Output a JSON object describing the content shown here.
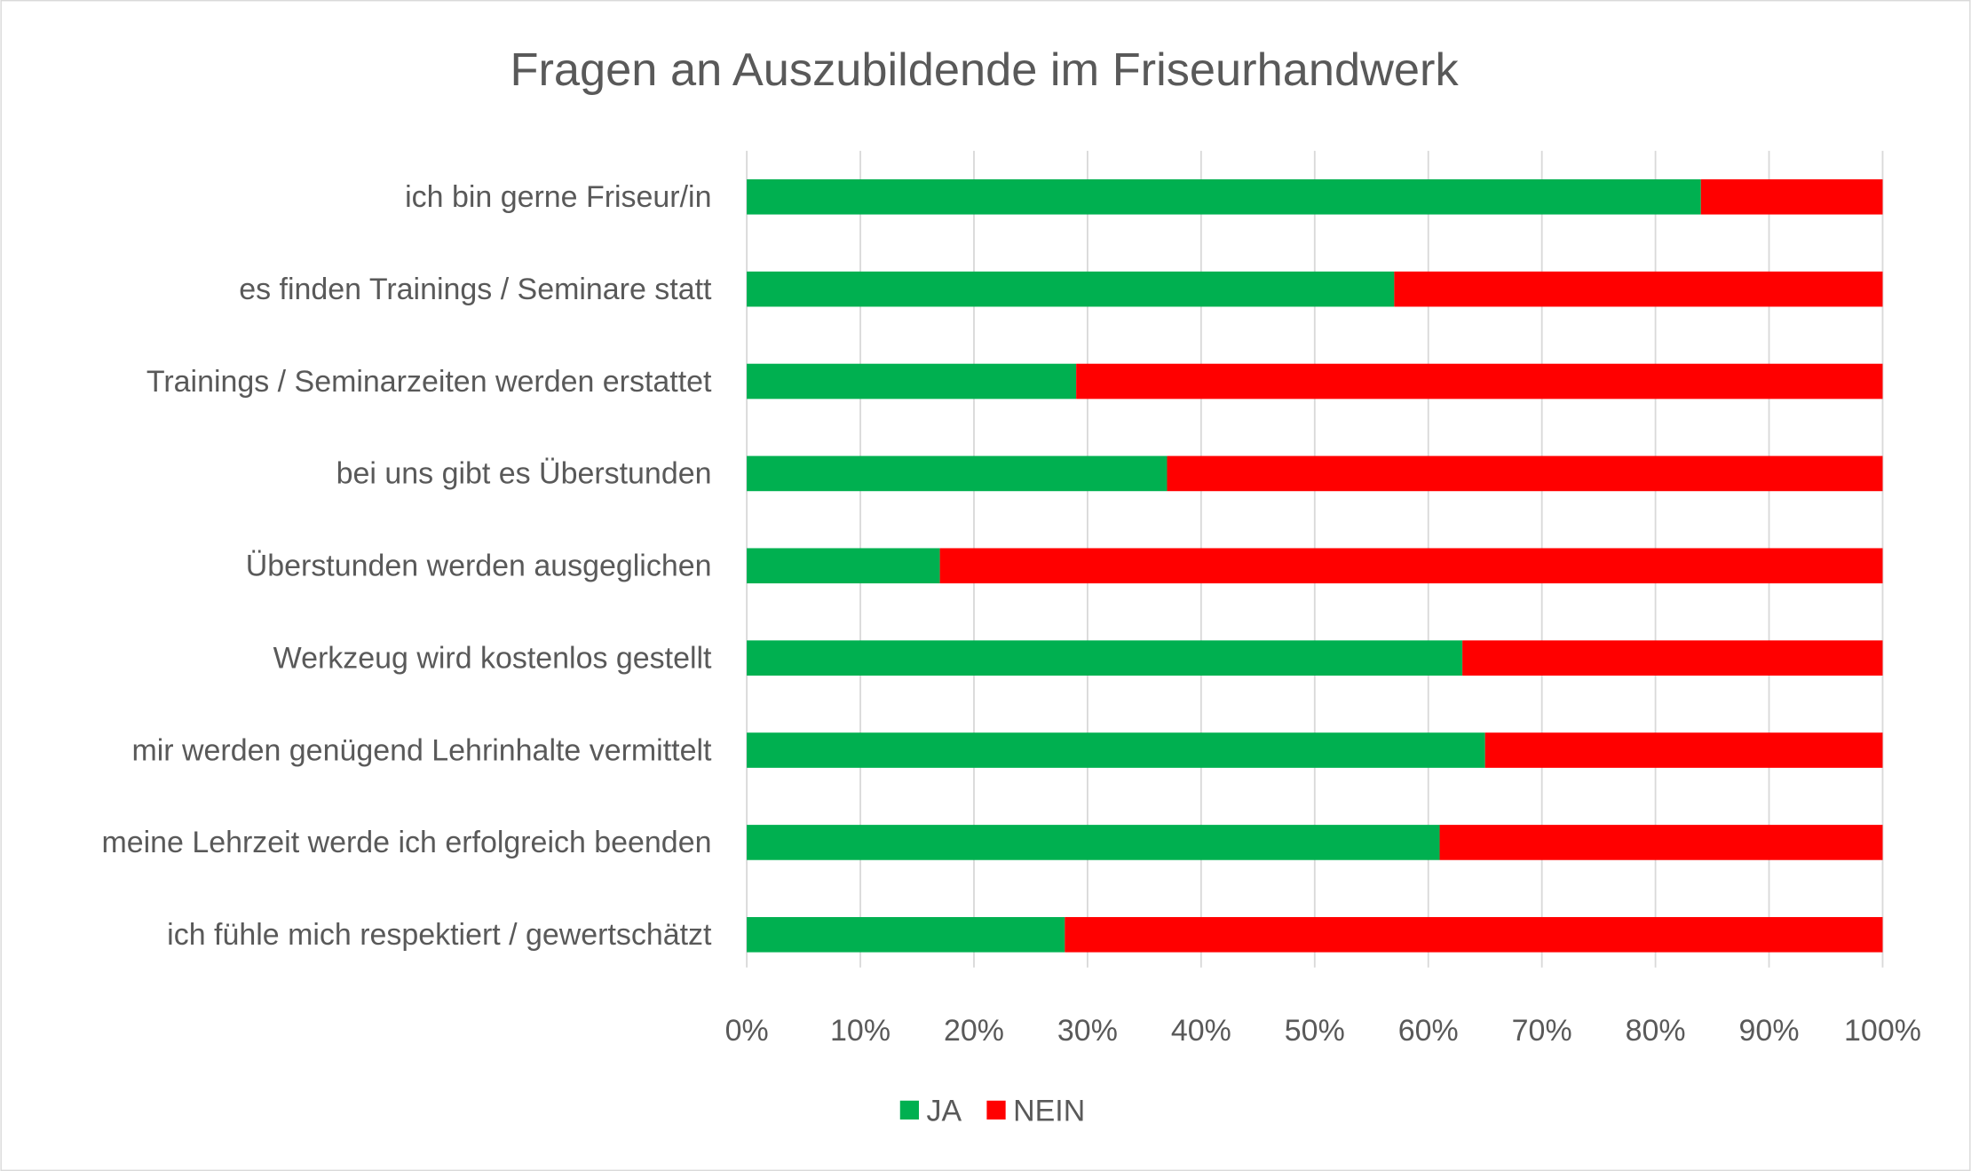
{
  "chart_data": {
    "type": "bar",
    "orientation": "horizontal",
    "stacked": "percent",
    "title": "Fragen an Auszubildende im Friseurhandwerk",
    "categories": [
      "ich bin gerne Friseur/in",
      "es finden Trainings / Seminare statt",
      "Trainings / Seminarzeiten werden erstattet",
      "bei uns gibt es Überstunden",
      "Überstunden werden ausgeglichen",
      "Werkzeug wird kostenlos gestellt",
      "mir werden genügend Lehrinhalte vermittelt",
      "meine Lehrzeit werde ich erfolgreich beenden",
      "ich fühle mich respektiert / gewertschätzt"
    ],
    "series": [
      {
        "name": "JA",
        "color": "#00B050",
        "values": [
          84,
          57,
          29,
          37,
          17,
          63,
          65,
          61,
          28
        ]
      },
      {
        "name": "NEIN",
        "color": "#FF0000",
        "values": [
          16,
          43,
          71,
          63,
          83,
          37,
          35,
          39,
          72
        ]
      }
    ],
    "xlim": [
      0,
      100
    ],
    "xticks": [
      "0%",
      "10%",
      "20%",
      "30%",
      "40%",
      "50%",
      "60%",
      "70%",
      "80%",
      "90%",
      "100%"
    ],
    "grid": true,
    "legend_position": "bottom"
  }
}
